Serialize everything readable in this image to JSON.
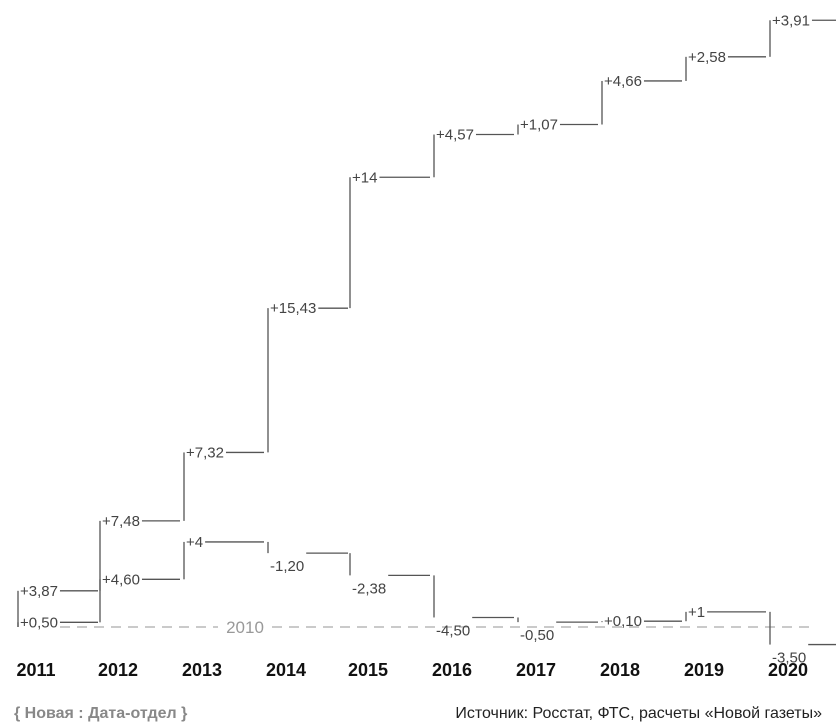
{
  "chart_data": {
    "type": "line",
    "baseline_label": "2010",
    "categories": [
      "2011",
      "2012",
      "2013",
      "2014",
      "2015",
      "2016",
      "2017",
      "2018",
      "2019",
      "2020"
    ],
    "series": [
      {
        "annual_change_labels": [
          "+3,87",
          "+7,48",
          "+7,32",
          "+15,43",
          "+14",
          "+4,57",
          "+1,07",
          "+4,66",
          "+2,58",
          "+3,91"
        ],
        "cumulative_level": [
          3.87,
          11.35,
          18.67,
          34.1,
          48.1,
          52.67,
          53.74,
          58.4,
          60.98,
          64.89
        ]
      },
      {
        "annual_change_labels": [
          "+0,50",
          "+4,60",
          "+4",
          "-1,20",
          "-2,38",
          "-4,50",
          "-0,50",
          "+0,10",
          "+1",
          "-3,50"
        ],
        "cumulative_level": [
          0.5,
          5.1,
          9.1,
          7.9,
          5.52,
          1.02,
          0.52,
          0.62,
          1.62,
          -1.88
        ]
      }
    ],
    "grid": false,
    "legend": "none"
  },
  "footer": {
    "brand": "{ Новая : Дата-отдел }",
    "source": "Источник: Росстат, ФТС, расчеты «Новой газеты»"
  }
}
